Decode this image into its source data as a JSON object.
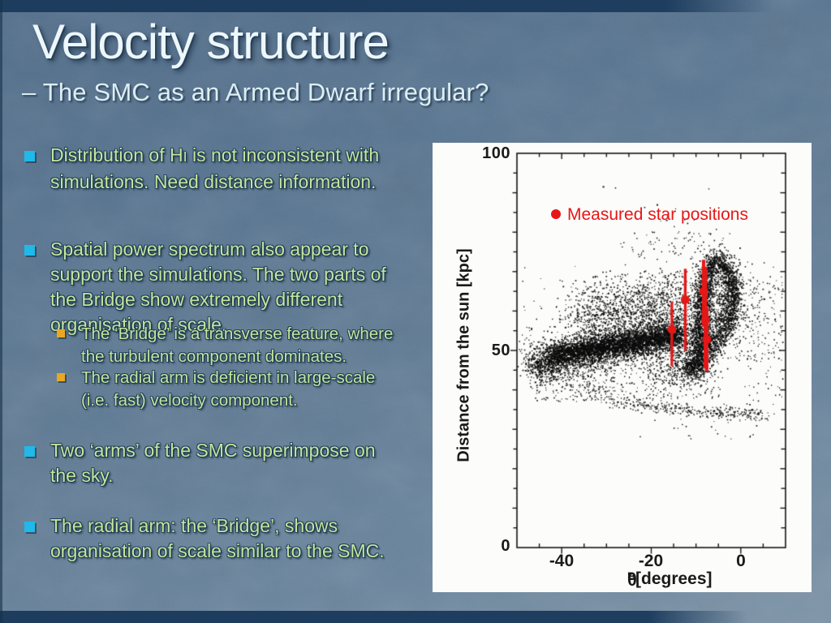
{
  "slide": {
    "title": "Velocity structure",
    "subtitle": "– The SMC as an Armed Dwarf irregular?",
    "colors": {
      "background": "#5d7993",
      "border_bar": "#1d3c5e",
      "bullet_level1": "#1fb9ea",
      "bullet_level2": "#e9a81f",
      "body_text": "#c6e59e",
      "title_text": "#edf7fb",
      "accent_red": "#e61717"
    },
    "bullets": [
      {
        "level": 1,
        "line1_pre": "Distribution of H",
        "line1_smallcap": "I",
        "line1_post": " is not inconsistent with",
        "rest": "simulations. Need distance information."
      },
      {
        "level": 1,
        "text": "Spatial power spectrum also appear to\nsupport the simulations. The two parts of\nthe Bridge show extremely different\norganisation of scale."
      },
      {
        "level": 2,
        "text": "The ‘Bridge’ is a transverse feature, where\nthe turbulent component dominates."
      },
      {
        "level": 2,
        "text": "The radial arm is deficient in large-scale\n(i.e. fast) velocity component."
      },
      {
        "level": 1,
        "text": "Two ‘arms’ of the SMC superimpose on\nthe sky."
      },
      {
        "level": 1,
        "text": "The radial arm: the ‘Bridge’, shows\norganisation of scale similar to the SMC."
      }
    ]
  },
  "figure": {
    "legend": {
      "label": "Measured star positions",
      "color": "#e61717"
    },
    "y_axis": {
      "title": "Distance from the sun [kpc]",
      "tick_100": "100",
      "tick_50": "50",
      "tick_0": "0"
    },
    "x_axis": {
      "theta": "θ",
      "theta_sub": "B",
      "units": "[degrees]",
      "tick_m40": "-40",
      "tick_m20": "-20",
      "tick_0": "0"
    }
  },
  "chart_data": {
    "type": "scatter",
    "title": "",
    "xlabel": "θ_B [degrees]",
    "ylabel": "Distance from the sun [kpc]",
    "xlim": [
      -50,
      10
    ],
    "ylim": [
      0,
      100
    ],
    "xticks_labeled": [
      -40,
      -20,
      0
    ],
    "yticks_labeled": [
      0,
      50,
      100
    ],
    "grid": false,
    "legend_position": "upper-left-inside",
    "series": [
      {
        "name": "Measured star positions",
        "color": "#e61717",
        "marker": "filled-circle-with-vertical-error-bar",
        "points": [
          {
            "x": -15.4,
            "y": 55.3,
            "y_err_lo": 46.0,
            "y_err_hi": 62.3,
            "bar_w": 3.2
          },
          {
            "x": -12.4,
            "y": 62.9,
            "y_err_lo": 50.0,
            "y_err_hi": 70.7,
            "bar_w": 3.4
          },
          {
            "x": -8.3,
            "y": 65.0,
            "y_err_lo": 56.0,
            "y_err_hi": 73.0,
            "bar_w": 4.2
          },
          {
            "x": -7.9,
            "y": 57.7,
            "y_err_lo": 45.4,
            "y_err_hi": 71.0,
            "bar_w": 4.6
          },
          {
            "x": -7.6,
            "y": 52.8,
            "y_err_lo": 44.8,
            "y_err_hi": 61.0,
            "bar_w": 4.0
          }
        ]
      }
    ],
    "background_scatter": {
      "description": "Dense black simulated-star point cloud: a thick bar rising from (-46,46) to (-13,54) kpc, a hook/arc arm spanning x=-11..-2 and y=44..73, diffuse halo above the bar, a sparse thin streak near y=34 from x=-28 to 6, sparse outskirts.",
      "n_dots_rendered": 11474
    },
    "render": {
      "seed": 1234,
      "dot_color": "#0c0c0c",
      "ticks": {
        "xmajor": [
          -40,
          -20,
          0
        ],
        "xminor": [
          -45,
          -35,
          -30,
          -25,
          -15,
          -10,
          -5,
          5
        ],
        "yminor5": [
          5,
          15,
          25,
          35,
          45,
          55,
          65,
          75,
          85,
          95
        ],
        "yminor10": [
          10,
          20,
          30,
          40,
          60,
          70,
          80,
          90
        ],
        "ymid": [
          50
        ]
      },
      "clusters": [
        {
          "type": "path",
          "n": 3200,
          "jx": 1.6,
          "jy": 2.4,
          "s": 1.5,
          "pts": [
            [
              -46,
              46
            ],
            [
              -40,
              48.5
            ],
            [
              -33,
              50
            ],
            [
              -26,
              51.5
            ],
            [
              -19,
              52.5
            ],
            [
              -13,
              54
            ]
          ]
        },
        {
          "type": "path",
          "n": 1700,
          "jx": 1.3,
          "jy": 1.4,
          "s": 1.6,
          "pts": [
            [
              -42,
              48.5
            ],
            [
              -34,
              50.5
            ],
            [
              -26,
              51.8
            ],
            [
              -18,
              53
            ],
            [
              -13.5,
              54.2
            ]
          ]
        },
        {
          "type": "gauss",
          "n": 280,
          "cx": -14,
          "cy": 45.5,
          "sx": 4,
          "sy": 2.4,
          "s": 1.4
        },
        {
          "type": "gauss",
          "n": 550,
          "cx": -24,
          "cy": 58.5,
          "sx": 7,
          "sy": 3.2,
          "s": 1.4
        },
        {
          "type": "gauss",
          "n": 300,
          "cx": -17,
          "cy": 63,
          "sx": 5,
          "sy": 3.2,
          "s": 1.4
        },
        {
          "type": "gauss",
          "n": 160,
          "cx": -28,
          "cy": 63.5,
          "sx": 5,
          "sy": 2.8,
          "s": 1.4
        },
        {
          "type": "gauss",
          "n": 140,
          "cx": -34,
          "cy": 58,
          "sx": 4,
          "sy": 2.5,
          "s": 1.4
        },
        {
          "type": "uniform",
          "n": 220,
          "x": [
            -38,
            -12
          ],
          "y": [
            56,
            70
          ],
          "s": 1.4
        },
        {
          "type": "path",
          "n": 3000,
          "jx": 1.15,
          "jy": 1.5,
          "s": 1.5,
          "pts": [
            [
              -11,
              45.5
            ],
            [
              -9.6,
              49.5
            ],
            [
              -9,
              54
            ],
            [
              -8.6,
              59
            ],
            [
              -8.2,
              64
            ],
            [
              -7.6,
              68.8
            ],
            [
              -6.2,
              72.3
            ],
            [
              -4.4,
              72.9
            ],
            [
              -2.9,
              70.3
            ],
            [
              -2,
              66.5
            ],
            [
              -1.8,
              62.5
            ],
            [
              -2.6,
              58.3
            ],
            [
              -4,
              55
            ],
            [
              -5.8,
              52
            ],
            [
              -7.8,
              49
            ],
            [
              -9.8,
              46
            ],
            [
              -11.4,
              43.5
            ]
          ]
        },
        {
          "type": "gauss",
          "n": 340,
          "cx": -5.2,
          "cy": 63,
          "sx": 3.4,
          "sy": 6.5,
          "s": 1.4
        },
        {
          "type": "gauss",
          "n": 250,
          "cx": -9,
          "cy": 57,
          "sx": 2,
          "sy": 6,
          "s": 1.4
        },
        {
          "type": "uniform",
          "n": 170,
          "x": [
            -27,
            -4
          ],
          "y": [
            37.5,
            46.5
          ],
          "s": 1.3
        },
        {
          "type": "uniform",
          "n": 200,
          "x": [
            -46,
            -28
          ],
          "y": [
            37,
            47
          ],
          "s": 1.3
        },
        {
          "type": "path",
          "n": 130,
          "jx": 1.5,
          "jy": 1.6,
          "s": 1.3,
          "pts": [
            [
              -44,
              44.5
            ],
            [
              -38,
              42
            ],
            [
              -31,
              39.5
            ],
            [
              -28,
              38.2
            ]
          ]
        },
        {
          "type": "path",
          "n": 330,
          "jx": 1.2,
          "jy": 0.85,
          "s": 1.4,
          "pts": [
            [
              -28,
              37
            ],
            [
              -21,
              36
            ],
            [
              -14,
              35
            ],
            [
              -7,
              34.3
            ],
            [
              0,
              33.8
            ],
            [
              6,
              33.4
            ]
          ]
        },
        {
          "type": "uniform",
          "n": 22,
          "x": [
            -24,
            3
          ],
          "y": [
            27.5,
            32.5
          ],
          "s": 1.3
        },
        {
          "type": "uniform",
          "n": 150,
          "x": [
            -1.5,
            9.5
          ],
          "y": [
            47,
            69
          ],
          "s": 1.3
        },
        {
          "type": "gauss",
          "n": 60,
          "cx": 3,
          "cy": 57,
          "sx": 3,
          "sy": 6,
          "s": 1.3
        },
        {
          "type": "uniform",
          "n": 18,
          "x": [
            0,
            9.5
          ],
          "y": [
            36,
            45
          ],
          "s": 1.3
        },
        {
          "type": "uniform",
          "n": 80,
          "x": [
            -27,
            -2
          ],
          "y": [
            73,
            80
          ],
          "s": 1.3
        },
        {
          "type": "uniform",
          "n": 14,
          "x": [
            -22,
            -4
          ],
          "y": [
            80,
            86
          ],
          "s": 1.3
        },
        {
          "type": "uniform",
          "n": 5,
          "x": [
            -32,
            -3
          ],
          "y": [
            86,
            93
          ],
          "s": 1.6
        },
        {
          "type": "uniform",
          "n": 35,
          "x": [
            -49.5,
            -46
          ],
          "y": [
            42,
            56
          ],
          "s": 1.3
        },
        {
          "type": "uniform",
          "n": 120,
          "x": [
            -49,
            9
          ],
          "y": [
            40,
            72
          ],
          "s": 1.2
        }
      ]
    }
  }
}
